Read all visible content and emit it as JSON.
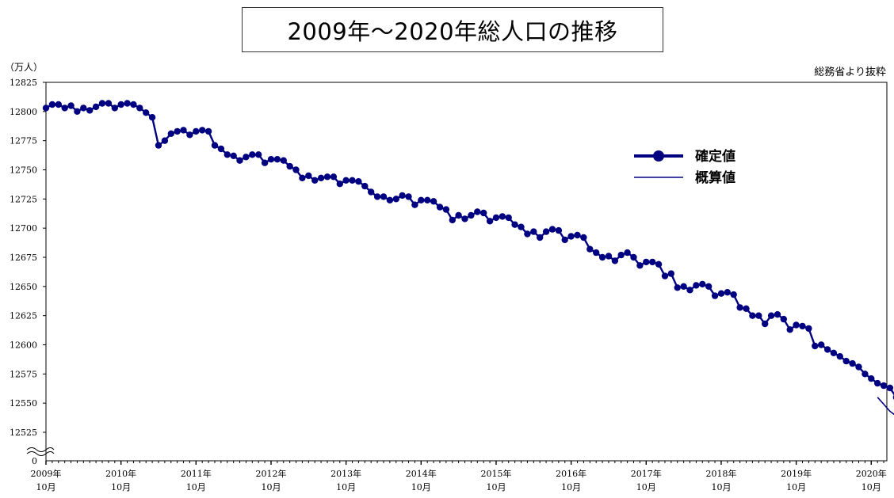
{
  "chart_data": {
    "type": "line",
    "title": "2009年～2020年総人口の推移",
    "unit_label": "（万人）",
    "source": "総務省より抜粋",
    "ylabel": "",
    "xlabel": "",
    "ylim": [
      12510,
      12825
    ],
    "y_ticks": [
      12825,
      12800,
      12775,
      12750,
      12725,
      12700,
      12675,
      12650,
      12625,
      12600,
      12575,
      12550,
      12525
    ],
    "y_zero_label": "0",
    "axis_break": true,
    "grid": false,
    "legend_placement": "right",
    "x_start": "2009-10",
    "x_end": "2020-12",
    "x_ticks": [
      {
        "month": "2009-10",
        "year": "2009年",
        "mon": "10月"
      },
      {
        "month": "2010-10",
        "year": "2010年",
        "mon": "10月"
      },
      {
        "month": "2011-10",
        "year": "2011年",
        "mon": "10月"
      },
      {
        "month": "2012-10",
        "year": "2012年",
        "mon": "10月"
      },
      {
        "month": "2013-10",
        "year": "2013年",
        "mon": "10月"
      },
      {
        "month": "2014-10",
        "year": "2014年",
        "mon": "10月"
      },
      {
        "month": "2015-10",
        "year": "2015年",
        "mon": "10月"
      },
      {
        "month": "2016-10",
        "year": "2016年",
        "mon": "10月"
      },
      {
        "month": "2017-10",
        "year": "2017年",
        "mon": "10月"
      },
      {
        "month": "2018-10",
        "year": "2018年",
        "mon": "10月"
      },
      {
        "month": "2019-10",
        "year": "2019年",
        "mon": "10月"
      },
      {
        "month": "2020-10",
        "year": "2020年",
        "mon": "10月"
      }
    ],
    "series": [
      {
        "name": "確定値",
        "color": "#000080",
        "style": "line-marker",
        "start": "2009-10",
        "values": [
          12803,
          12806,
          12806,
          12803,
          12805,
          12800,
          12803,
          12801,
          12804,
          12807,
          12807,
          12803,
          12806,
          12807,
          12806,
          12803,
          12799,
          12795,
          12771,
          12775,
          12781,
          12783,
          12784,
          12780,
          12783,
          12784,
          12783,
          12771,
          12768,
          12763,
          12762,
          12758,
          12761,
          12763,
          12763,
          12756,
          12759,
          12759,
          12758,
          12753,
          12750,
          12743,
          12745,
          12741,
          12743,
          12744,
          12744,
          12738,
          12741,
          12741,
          12740,
          12736,
          12731,
          12727,
          12727,
          12724,
          12725,
          12728,
          12727,
          12720,
          12724,
          12724,
          12723,
          12718,
          12716,
          12707,
          12711,
          12708,
          12711,
          12714,
          12713,
          12706,
          12709,
          12710,
          12709,
          12703,
          12701,
          12695,
          12697,
          12692,
          12697,
          12699,
          12698,
          12690,
          12693,
          12694,
          12692,
          12682,
          12679,
          12675,
          12676,
          12672,
          12677,
          12679,
          12675,
          12668,
          12671,
          12671,
          12669,
          12659,
          12661,
          12649,
          12650,
          12647,
          12651,
          12652,
          12650,
          12642,
          12644,
          12645,
          12643,
          12632,
          12631,
          12625,
          12625,
          12618,
          12625,
          12626,
          12622,
          12613,
          12617,
          12616,
          12614,
          12599,
          12600,
          12596,
          12593,
          12590,
          12586,
          12584,
          12581,
          12575,
          12571,
          12567,
          12565,
          12563,
          12555
        ]
      },
      {
        "name": "概算値",
        "color": "#000080",
        "style": "line",
        "start": "2020-11",
        "values": [
          12555,
          12549,
          12543,
          12539,
          12536,
          12547,
          12536
        ]
      }
    ]
  }
}
